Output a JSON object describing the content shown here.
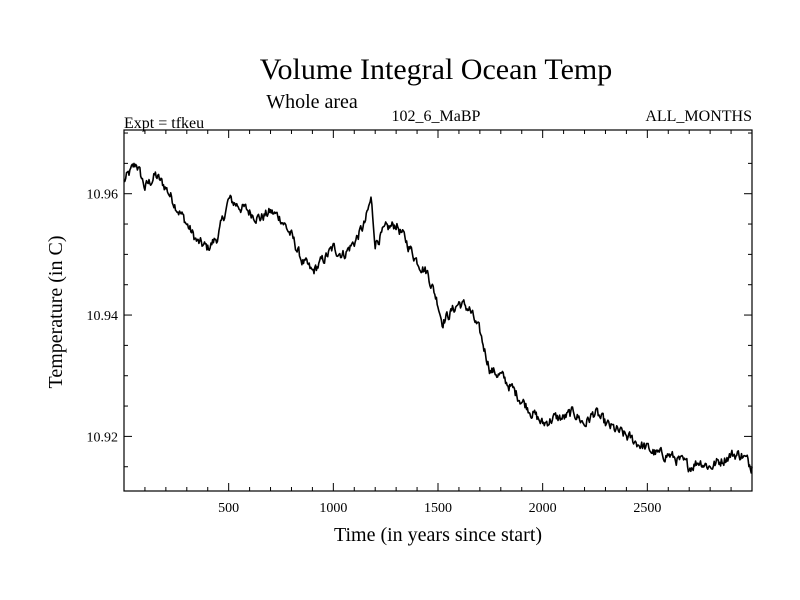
{
  "chart_data": {
    "type": "line",
    "title": "Volume Integral Ocean Temp",
    "subtitle": "Whole area",
    "annotations": {
      "experiment": "Expt = tfkeu",
      "period": "102_6_MaBP",
      "months": "ALL_MONTHS"
    },
    "xlabel": "Time (in years since start)",
    "ylabel": "Temperature (in C)",
    "xlim": [
      0,
      3000
    ],
    "ylim": [
      10.911,
      10.9705
    ],
    "x_ticks_labeled": [
      500,
      1000,
      1500,
      2000,
      2500
    ],
    "x_minor_step": 100,
    "y_ticks_labeled": [
      "10.92",
      "10.94",
      "10.96"
    ],
    "y_tick_values": [
      10.92,
      10.94,
      10.96
    ],
    "y_minor_step": 0.005,
    "grid": false,
    "line_color": "#000000",
    "series": [
      {
        "x": [
          0,
          20,
          40,
          60,
          80,
          100,
          150,
          200,
          250,
          300,
          350,
          400,
          450,
          500,
          550,
          600,
          650,
          700,
          750,
          800,
          850,
          900,
          950,
          1000,
          1050,
          1100,
          1150,
          1180,
          1200,
          1250,
          1300,
          1350,
          1400,
          1450,
          1500,
          1520,
          1550,
          1600,
          1650,
          1700,
          1750,
          1800,
          1850,
          1900,
          1950,
          2000,
          2050,
          2100,
          2150,
          2200,
          2250,
          2300,
          2350,
          2400,
          2450,
          2500,
          2550,
          2600,
          2650,
          2700,
          2750,
          2800,
          2850,
          2900,
          2950,
          3000
        ],
        "y": [
          10.962,
          10.963,
          10.964,
          10.965,
          10.963,
          10.961,
          10.963,
          10.961,
          10.958,
          10.955,
          10.952,
          10.951,
          10.953,
          10.959,
          10.958,
          10.957,
          10.956,
          10.957,
          10.956,
          10.953,
          10.949,
          10.947,
          10.949,
          10.951,
          10.95,
          10.952,
          10.955,
          10.959,
          10.952,
          10.954,
          10.955,
          10.952,
          10.949,
          10.947,
          10.942,
          10.939,
          10.94,
          10.942,
          10.941,
          10.937,
          10.931,
          10.93,
          10.928,
          10.926,
          10.924,
          10.922,
          10.923,
          10.923,
          10.924,
          10.922,
          10.924,
          10.922,
          10.921,
          10.92,
          10.919,
          10.918,
          10.917,
          10.917,
          10.916,
          10.915,
          10.916,
          10.915,
          10.916,
          10.917,
          10.917,
          10.915
        ]
      }
    ]
  }
}
